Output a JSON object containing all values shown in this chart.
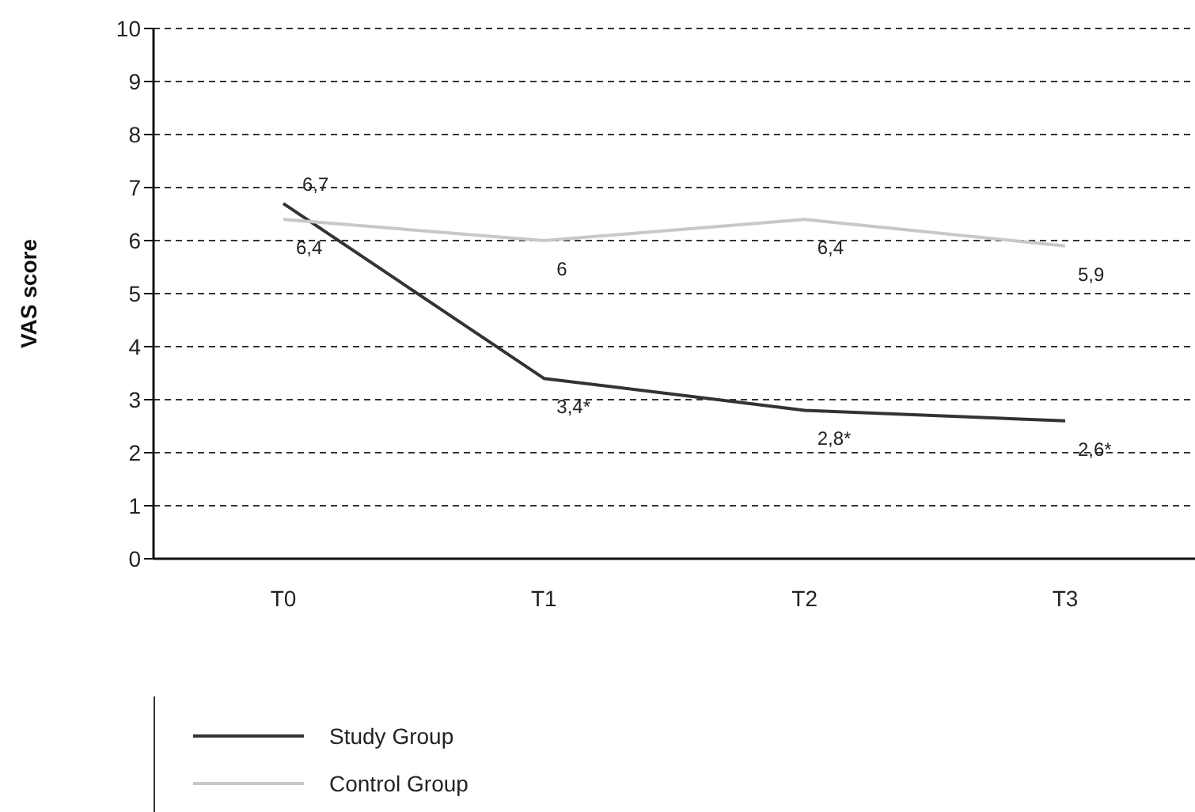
{
  "chart_data": {
    "type": "line",
    "ylabel": "VAS score",
    "categories": [
      "T0",
      "T1",
      "T2",
      "T3"
    ],
    "series": [
      {
        "name": "Study Group",
        "color": "#333333",
        "values": [
          6.7,
          3.4,
          2.8,
          2.6
        ],
        "value_labels": [
          "6,7",
          "3,4*",
          "2,8*",
          "2,6*"
        ]
      },
      {
        "name": "Control Group",
        "color": "#c8c8c8",
        "values": [
          6.4,
          6,
          6.4,
          5.9
        ],
        "value_labels": [
          "6,4",
          "6",
          "6,4",
          "5,9"
        ]
      }
    ],
    "ylim": [
      0,
      10
    ],
    "yticks": [
      0,
      1,
      2,
      3,
      4,
      5,
      6,
      7,
      8,
      9,
      10
    ],
    "grid": "y",
    "legend": "bottom left",
    "marker": "none",
    "line_style": "solid"
  }
}
